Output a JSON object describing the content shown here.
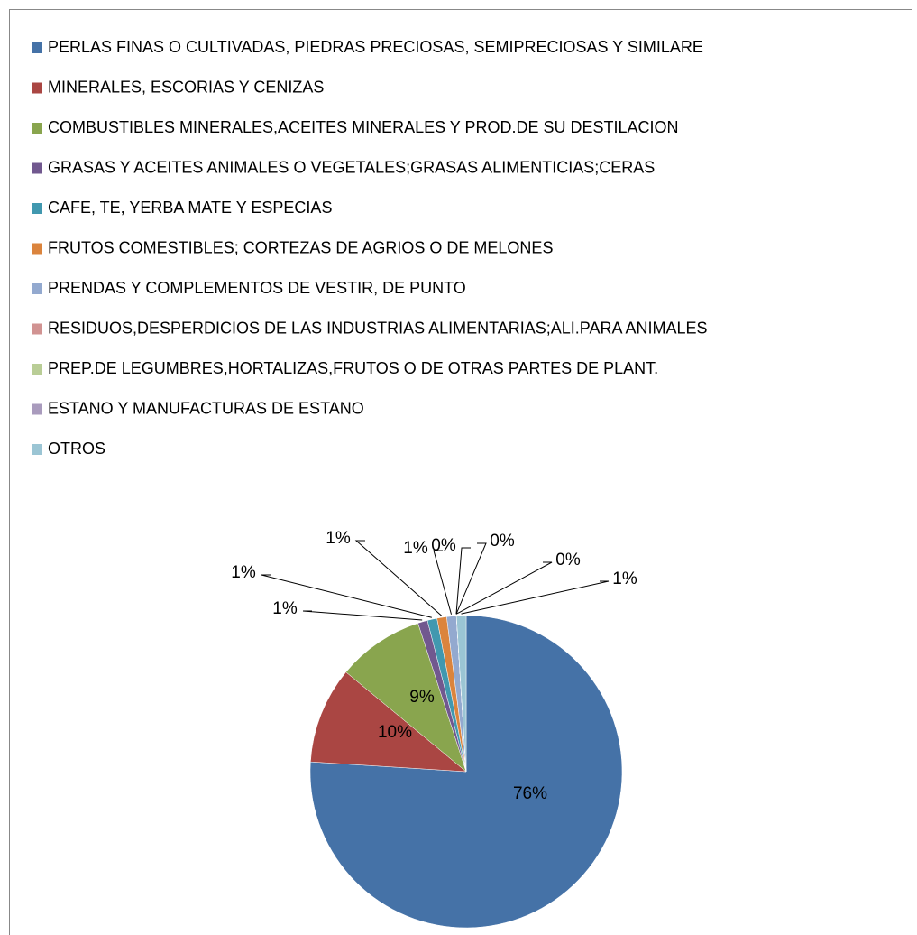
{
  "chart_data": {
    "type": "pie",
    "categories": [
      "PERLAS FINAS O CULTIVADAS, PIEDRAS PRECIOSAS, SEMIPRECIOSAS Y SIMILARE",
      "MINERALES, ESCORIAS Y CENIZAS",
      "COMBUSTIBLES MINERALES,ACEITES MINERALES Y PROD.DE SU DESTILACION",
      "GRASAS Y ACEITES ANIMALES O VEGETALES;GRASAS ALIMENTICIAS;CERAS",
      "CAFE, TE, YERBA MATE Y ESPECIAS",
      "FRUTOS COMESTIBLES; CORTEZAS DE AGRIOS O DE MELONES",
      "PRENDAS Y COMPLEMENTOS DE VESTIR, DE PUNTO",
      "RESIDUOS,DESPERDICIOS DE LAS INDUSTRIAS ALIMENTARIAS;ALI.PARA ANIMALES",
      "PREP.DE LEGUMBRES,HORTALIZAS,FRUTOS O DE OTRAS PARTES DE PLANT.",
      "ESTANO Y MANUFACTURAS DE ESTANO",
      "OTROS"
    ],
    "values": [
      76,
      10,
      9,
      1,
      1,
      1,
      1,
      0,
      0,
      0,
      1
    ],
    "value_labels": [
      "76%",
      "10%",
      "9%",
      "1%",
      "1%",
      "1%",
      "1%",
      "0%",
      "0%",
      "0%",
      "1%"
    ],
    "colors": [
      "#4572a7",
      "#aa4643",
      "#89a54e",
      "#71588f",
      "#4198af",
      "#db843d",
      "#93a9cf",
      "#d19392",
      "#b9cd96",
      "#a99bbd",
      "#9bc5d4"
    ],
    "legend": "top"
  }
}
